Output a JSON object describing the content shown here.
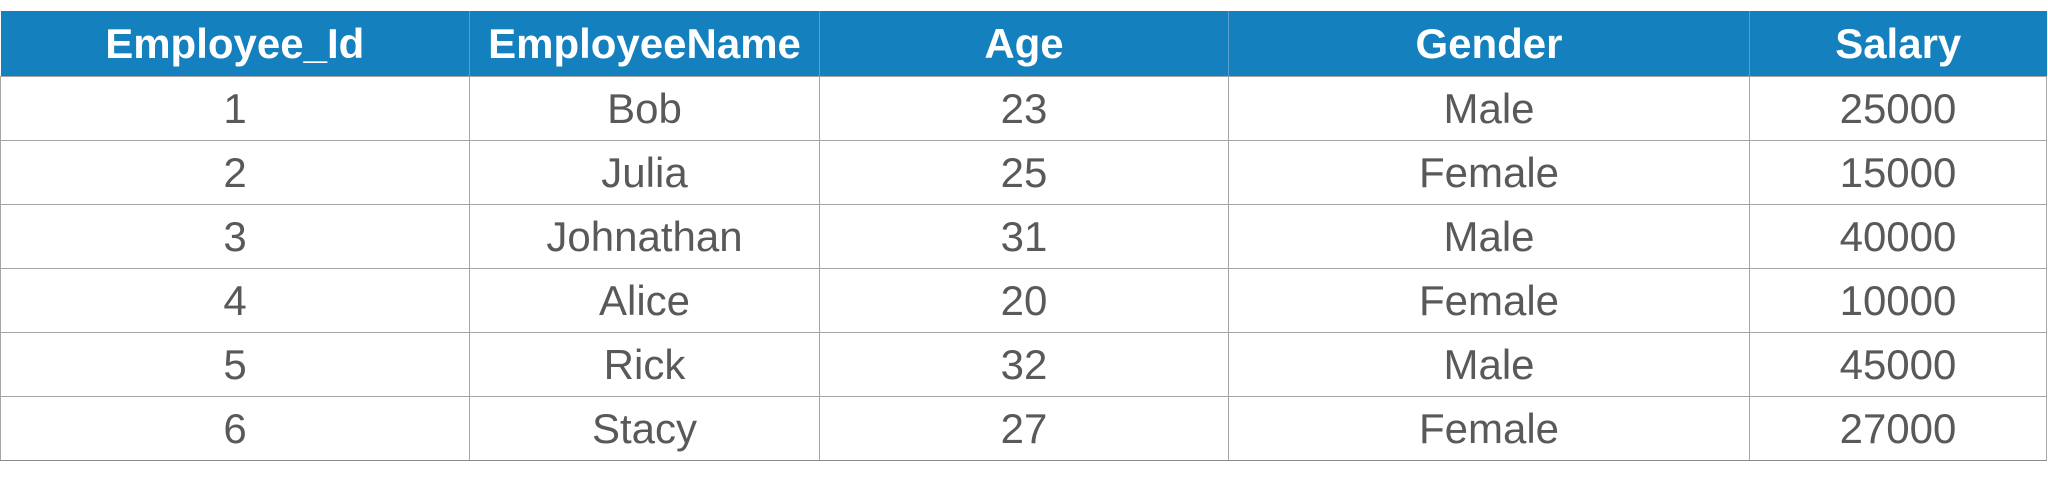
{
  "table": {
    "headers": [
      "Employee_Id",
      "EmployeeName",
      "Age",
      "Gender",
      "Salary"
    ],
    "rows": [
      [
        "1",
        "Bob",
        "23",
        "Male",
        "25000"
      ],
      [
        "2",
        "Julia",
        "25",
        "Female",
        "15000"
      ],
      [
        "3",
        "Johnathan",
        "31",
        "Male",
        "40000"
      ],
      [
        "4",
        "Alice",
        "20",
        "Female",
        "10000"
      ],
      [
        "5",
        "Rick",
        "32",
        "Male",
        "45000"
      ],
      [
        "6",
        "Stacy",
        "27",
        "Female",
        "27000"
      ]
    ]
  },
  "colors": {
    "header_background": "#1480bd",
    "header_text": "#ffffff",
    "cell_text": "#595959",
    "grid_line": "#a6a6a6"
  }
}
